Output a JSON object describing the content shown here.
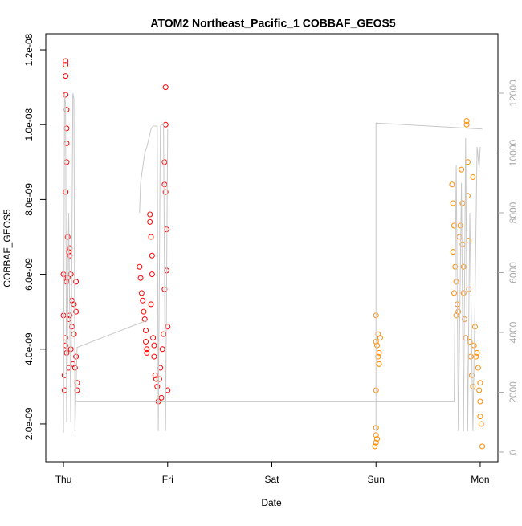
{
  "chart_data": {
    "type": "scatter",
    "title": "ATOM2 Northeast_Pacific_1 COBBAF_GEOS5",
    "xlabel": "Date",
    "ylabel": "COBBAF_GEOS5",
    "xlim": [
      -0.17,
      4.17
    ],
    "xticks": [
      {
        "value": 0,
        "label": "Thu"
      },
      {
        "value": 1,
        "label": "Fri"
      },
      {
        "value": 2,
        "label": "Sat"
      },
      {
        "value": 3,
        "label": "Sun"
      },
      {
        "value": 4,
        "label": "Mon"
      }
    ],
    "ylim": [
      9.9e-10,
      1.243e-08
    ],
    "yticks": [
      {
        "value": 2e-09,
        "label": "2.0e-09"
      },
      {
        "value": 4e-09,
        "label": "4.0e-09"
      },
      {
        "value": 6e-09,
        "label": "6.0e-09"
      },
      {
        "value": 8e-09,
        "label": "8.0e-09"
      },
      {
        "value": 1e-08,
        "label": "1.0e-08"
      },
      {
        "value": 1.2e-08,
        "label": "1.2e-08"
      }
    ],
    "y2lim": [
      -322,
      13987
    ],
    "y2ticks": [
      0,
      2000,
      4000,
      6000,
      8000,
      10000,
      12000
    ],
    "series": [
      {
        "color": "#ff0000",
        "x": [
          0.02,
          0.02,
          0.02,
          0.02,
          0.03,
          0.03,
          0.03,
          0.03,
          0.02,
          0.04,
          0.05,
          0.06,
          0.06,
          0.0,
          0.03,
          0.0,
          0.02,
          0.02,
          0.03,
          0.01,
          0.01,
          0.05,
          0.06,
          0.08,
          0.08,
          0.1,
          0.1,
          0.12,
          0.12,
          0.12,
          0.13,
          0.13,
          0.11,
          0.09,
          0.07,
          0.05,
          0.04,
          0.07,
          0.73,
          0.74,
          0.75,
          0.76,
          0.77,
          0.78,
          0.79,
          0.79,
          0.8,
          0.8,
          0.83,
          0.83,
          0.84,
          0.85,
          0.85,
          0.84,
          0.86,
          0.87,
          0.88,
          0.89,
          0.9,
          0.91,
          0.93,
          0.95,
          0.96,
          0.98,
          0.98,
          0.97,
          0.97,
          0.98,
          0.99,
          0.99,
          0.97,
          1.0,
          1.0,
          0.94,
          0.92,
          0.87
        ],
        "values": [
          1.17e-08,
          1.16e-08,
          1.13e-08,
          1.08e-08,
          1.04e-08,
          9.9e-09,
          9.5e-09,
          9e-09,
          8.2e-09,
          7e-09,
          6.6e-09,
          6.5e-09,
          6.7e-09,
          6e-09,
          5.8e-09,
          4.9e-09,
          4.3e-09,
          4.1e-09,
          3.9e-09,
          3.3e-09,
          2.9e-09,
          4.8e-09,
          4.9e-09,
          4.6e-09,
          5.3e-09,
          5.2e-09,
          4.4e-09,
          5.8e-09,
          5e-09,
          3.8e-09,
          3.1e-09,
          2.9e-09,
          3.5e-09,
          3.6e-09,
          4e-09,
          3.5e-09,
          5.9e-09,
          6e-09,
          6.2e-09,
          5.9e-09,
          5.5e-09,
          5.3e-09,
          5e-09,
          4.8e-09,
          4.5e-09,
          4.2e-09,
          4e-09,
          3.9e-09,
          7.6e-09,
          7.4e-09,
          7e-09,
          6.5e-09,
          6e-09,
          5.2e-09,
          4.3e-09,
          4.1e-09,
          3.3e-09,
          3.2e-09,
          3e-09,
          2.6e-09,
          3.5e-09,
          4e-09,
          4.4e-09,
          1.1e-08,
          1e-08,
          9e-09,
          8.4e-09,
          8.2e-09,
          7.2e-09,
          6.1e-09,
          5.6e-09,
          4.6e-09,
          2.9e-09,
          2.7e-09,
          3.2e-09,
          3.8e-09
        ]
      },
      {
        "color": "#ff8c00",
        "x": [
          3.0,
          3.0,
          3.01,
          3.02,
          3.03,
          3.04,
          3.02,
          3.03,
          3.0,
          3.0,
          3.0,
          3.0,
          2.99,
          3.01,
          3.73,
          3.74,
          3.75,
          3.74,
          3.76,
          3.77,
          3.75,
          3.78,
          3.77,
          3.79,
          3.8,
          3.81,
          3.82,
          3.83,
          3.83,
          3.84,
          3.84,
          3.85,
          3.86,
          3.87,
          3.87,
          3.88,
          3.88,
          3.89,
          3.89,
          3.9,
          3.91,
          3.92,
          3.93,
          3.94,
          3.95,
          3.93,
          3.96,
          3.97,
          3.98,
          3.99,
          4.0,
          4.0,
          4.01,
          4.02,
          4.0
        ],
        "values": [
          4.9e-09,
          4.2e-09,
          4.1e-09,
          4.4e-09,
          3.9e-09,
          4.3e-09,
          3.8e-09,
          3.6e-09,
          2.9e-09,
          1.9e-09,
          1.7e-09,
          1.5e-09,
          1.4e-09,
          1.6e-09,
          8.4e-09,
          7.9e-09,
          7.3e-09,
          6.6e-09,
          6.2e-09,
          5.8e-09,
          5.5e-09,
          5.2e-09,
          4.9e-09,
          5e-09,
          7e-09,
          7.3e-09,
          8.8e-09,
          7.9e-09,
          6.8e-09,
          6.2e-09,
          5.5e-09,
          4.8e-09,
          4.3e-09,
          1.01e-08,
          1e-08,
          9e-09,
          8.1e-09,
          6.9e-09,
          5.6e-09,
          4.2e-09,
          3.8e-09,
          3.3e-09,
          3e-09,
          4.1e-09,
          4.6e-09,
          8.6e-09,
          3.8e-09,
          3.9e-09,
          3.5e-09,
          2.9e-09,
          2.6e-09,
          2.2e-09,
          2e-09,
          1.4e-09,
          3.1e-09
        ]
      },
      {
        "color": "#c8c8c8",
        "type": "line",
        "axis": "y2",
        "x": [
          0.0,
          0.01,
          0.02,
          0.03,
          0.05,
          0.07,
          0.09,
          0.1,
          0.11,
          0.13,
          0.8,
          null,
          0.73,
          0.74,
          0.76,
          0.78,
          0.8,
          0.84,
          0.86,
          0.9,
          0.91,
          0.93,
          0.96,
          0.98,
          1.0,
          null,
          0.12,
          3.75,
          3.77,
          3.79,
          3.82,
          3.84,
          3.86,
          3.88,
          3.9,
          3.93,
          3.95,
          3.97,
          3.99,
          4.0,
          null,
          3.0,
          3.0,
          4.02
        ],
        "values": [
          650,
          12000,
          11600,
          1000,
          8000,
          1000,
          12000,
          11800,
          700,
          3500,
          4400,
          null,
          8000,
          9000,
          9500,
          10000,
          10200,
          10800,
          10900,
          10900,
          700,
          10900,
          11000,
          700,
          10800,
          null,
          1700,
          1700,
          9600,
          700,
          9000,
          700,
          10500,
          700,
          8000,
          700,
          5000,
          10200,
          9500,
          10200,
          null,
          700,
          11000,
          10800
        ]
      }
    ]
  }
}
